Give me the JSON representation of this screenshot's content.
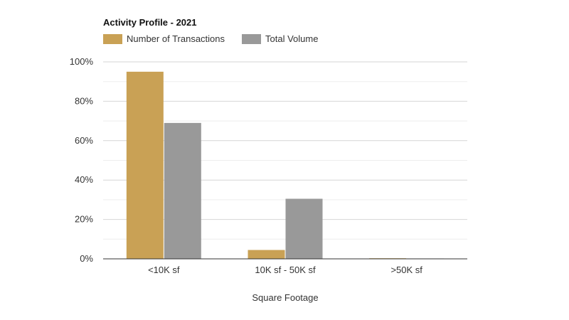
{
  "chart_data": {
    "type": "bar",
    "title": "Activity Profile - 2021",
    "xlabel": "Square Footage",
    "ylabel": "",
    "categories": [
      "<10K sf",
      "10K sf - 50K sf",
      ">50K sf"
    ],
    "series": [
      {
        "name": "Number of Transactions",
        "values": [
          95,
          4.5,
          0.3
        ],
        "color": "#c9a155"
      },
      {
        "name": "Total Volume",
        "values": [
          69,
          30.5,
          0.2
        ],
        "color": "#999999"
      }
    ],
    "ylim": [
      0,
      100
    ],
    "yticks": [
      0,
      20,
      40,
      60,
      80,
      100
    ],
    "ytick_labels": [
      "0%",
      "20%",
      "40%",
      "60%",
      "80%",
      "100%"
    ],
    "grid": true,
    "legend_position": "top-left"
  }
}
